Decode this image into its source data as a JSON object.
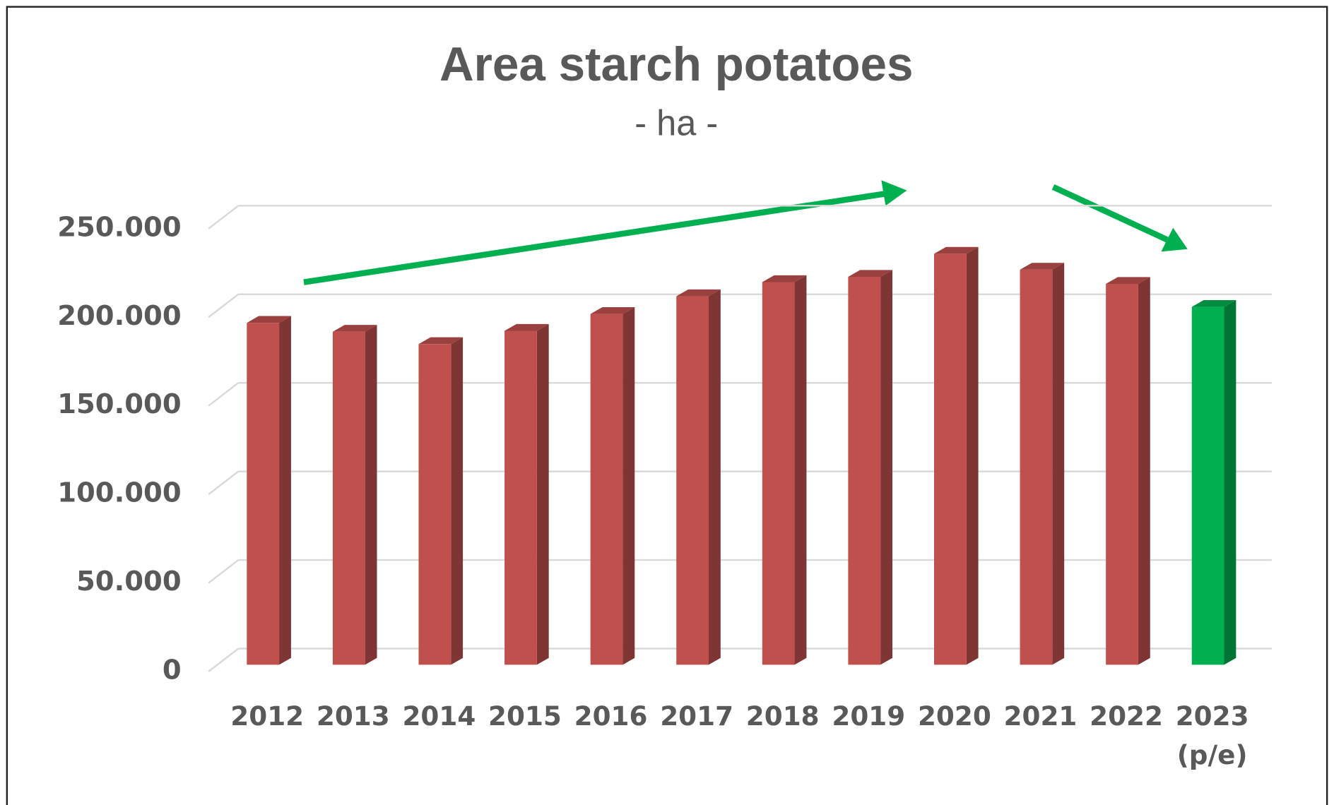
{
  "chart_data": {
    "type": "bar3d",
    "title": "Area starch potatoes",
    "subtitle": "- ha -",
    "categories": [
      "2012",
      "2013",
      "2014",
      "2015",
      "2016",
      "2017",
      "2018",
      "2019",
      "2020",
      "2021",
      "2022",
      "2023\n(p/e)"
    ],
    "values": [
      193000,
      188000,
      181000,
      188500,
      198000,
      208000,
      216000,
      219000,
      232000,
      223000,
      215000,
      202000
    ],
    "colors": [
      "#c0504d",
      "#c0504d",
      "#c0504d",
      "#c0504d",
      "#c0504d",
      "#c0504d",
      "#c0504d",
      "#c0504d",
      "#c0504d",
      "#c0504d",
      "#c0504d",
      "#00b050"
    ],
    "ylim": [
      0,
      250000
    ],
    "yticks": [
      0,
      {
        "value": 50000,
        "label": "50.000"
      },
      {
        "value": 100000,
        "label": "100.000"
      },
      {
        "value": 150000,
        "label": "150.000"
      },
      {
        "value": 200000,
        "label": "200.000"
      },
      {
        "value": 250000,
        "label": "250.000"
      }
    ],
    "grid": true
  }
}
